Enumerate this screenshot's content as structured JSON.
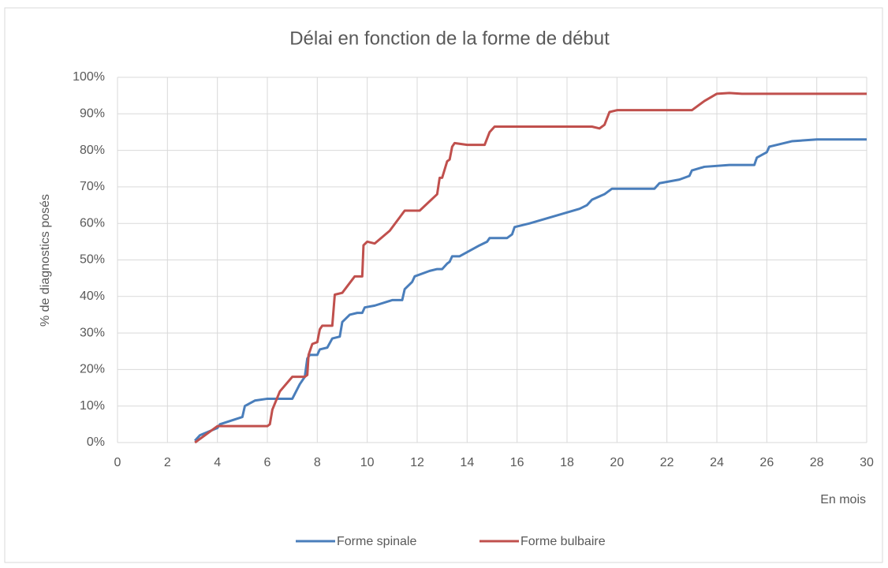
{
  "chart_data": {
    "type": "line",
    "title": "Délai en fonction de la forme de début",
    "y_label": "% de diagnostics posés",
    "x_label": "En mois",
    "xlim": [
      0,
      30
    ],
    "xticks": [
      0,
      2,
      4,
      6,
      8,
      10,
      12,
      14,
      16,
      18,
      20,
      22,
      24,
      26,
      28,
      30
    ],
    "ylim": [
      0,
      100
    ],
    "yticks": [
      {
        "value": 0,
        "label": "0%"
      },
      {
        "value": 10,
        "label": "10%"
      },
      {
        "value": 20,
        "label": "20%"
      },
      {
        "value": 30,
        "label": "30%"
      },
      {
        "value": 40,
        "label": "40%"
      },
      {
        "value": 50,
        "label": "50%"
      },
      {
        "value": 60,
        "label": "60%"
      },
      {
        "value": 70,
        "label": "70%"
      },
      {
        "value": 80,
        "label": "80%"
      },
      {
        "value": 90,
        "label": "90%"
      },
      {
        "value": 100,
        "label": "100%"
      }
    ],
    "grid": true,
    "legend": "bottom",
    "series": [
      {
        "name": "Forme spinale",
        "color": "#4a7ebb",
        "x": [
          3.1,
          3.3,
          4,
          4.1,
          5,
          5.1,
          5.5,
          6,
          7,
          7.3,
          7.5,
          7.6,
          7.7,
          8,
          8.1,
          8.4,
          8.6,
          8.9,
          9,
          9.3,
          9.6,
          9.8,
          9.9,
          10.3,
          11,
          11.4,
          11.5,
          11.8,
          11.9,
          12.5,
          12.8,
          13,
          13.2,
          13.3,
          13.4,
          13.7,
          14.5,
          14.8,
          14.9,
          15.6,
          15.8,
          15.9,
          16.5,
          17.5,
          18.5,
          18.8,
          19,
          19.5,
          19.8,
          21,
          21.5,
          21.7,
          22.5,
          22.9,
          23,
          23.5,
          24.5,
          25.5,
          25.6,
          26,
          26.1,
          27,
          28,
          29,
          30
        ],
        "values": [
          0.5,
          2,
          4,
          5,
          7,
          10,
          11.5,
          12,
          12,
          16,
          18,
          23,
          24,
          24,
          25.5,
          26,
          28.5,
          29,
          33,
          35,
          35.5,
          35.5,
          37,
          37.5,
          39,
          39,
          42,
          44,
          45.5,
          47,
          47.5,
          47.5,
          49,
          49.5,
          51,
          51,
          54,
          55,
          56,
          56,
          57,
          59,
          60,
          62,
          64,
          65,
          66.5,
          68,
          69.5,
          69.5,
          69.5,
          71,
          72,
          73,
          74.5,
          75.5,
          76,
          76,
          78,
          79.5,
          81,
          82.5,
          83,
          83,
          83
        ]
      },
      {
        "name": "Forme bulbaire",
        "color": "#c0504d",
        "x": [
          3.1,
          3.5,
          4,
          5,
          6,
          6.1,
          6.2,
          6.5,
          7,
          7.5,
          7.6,
          7.65,
          7.8,
          8,
          8.1,
          8.2,
          8.6,
          8.7,
          9,
          9.5,
          9.8,
          9.85,
          10,
          10.3,
          10.9,
          11.5,
          12.1,
          12.8,
          12.9,
          13,
          13.2,
          13.3,
          13.4,
          13.5,
          14,
          14.7,
          14.9,
          15.1,
          16,
          19,
          19.3,
          19.5,
          19.7,
          20,
          21,
          23,
          23.5,
          24,
          24.5,
          25,
          30
        ],
        "values": [
          0,
          2,
          4.5,
          4.5,
          4.5,
          5,
          9,
          14,
          18,
          18,
          18.5,
          24,
          27,
          27.5,
          31,
          32,
          32,
          40.5,
          41,
          45.5,
          45.5,
          54,
          55,
          54.5,
          58,
          63.5,
          63.5,
          68,
          72.5,
          72.5,
          77,
          77.5,
          81,
          82,
          81.5,
          81.5,
          85,
          86.5,
          86.5,
          86.5,
          86,
          87,
          90.5,
          91,
          91,
          91,
          93.5,
          95.5,
          95.7,
          95.5,
          95.5
        ]
      }
    ]
  }
}
